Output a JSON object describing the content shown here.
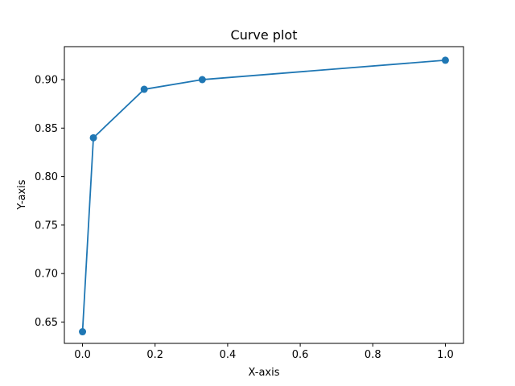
{
  "chart_data": {
    "type": "line",
    "title": "Curve plot",
    "xlabel": "X-axis",
    "ylabel": "Y-axis",
    "x": [
      0.0,
      0.03,
      0.17,
      0.33,
      1.0
    ],
    "series": [
      {
        "values": [
          0.64,
          0.84,
          0.89,
          0.9,
          0.92
        ]
      }
    ],
    "xlim": [
      -0.05,
      1.05
    ],
    "ylim": [
      0.628,
      0.934
    ],
    "xticks": [
      "0.0",
      "0.2",
      "0.4",
      "0.6",
      "0.8",
      "1.0"
    ],
    "yticks": [
      "0.65",
      "0.70",
      "0.75",
      "0.80",
      "0.85",
      "0.90"
    ],
    "markers": true,
    "grid": false,
    "legend": "none",
    "color": "#1f77b4"
  }
}
